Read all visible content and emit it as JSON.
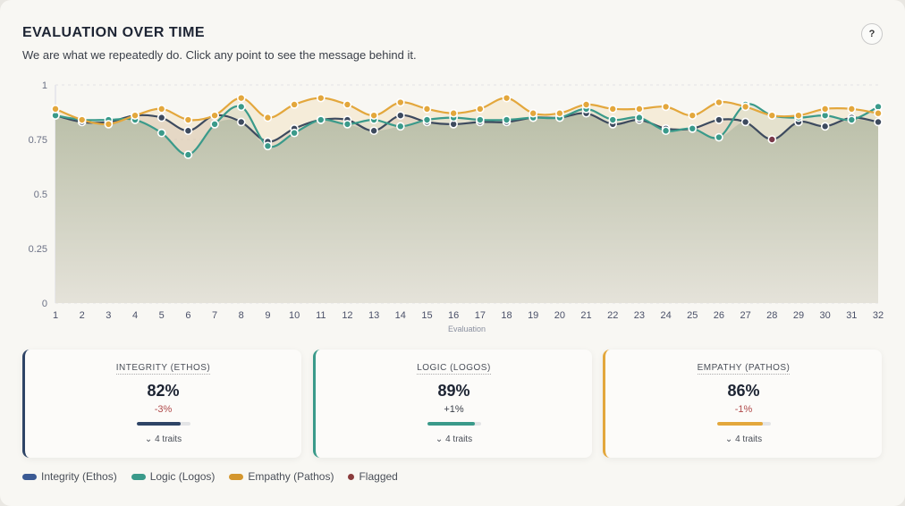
{
  "header": {
    "title": "EVALUATION OVER TIME",
    "subtitle": "We are what we repeatedly do. Click any point to see the message behind it.",
    "help_label": "?"
  },
  "chart_data": {
    "type": "line",
    "xlabel": "Evaluation",
    "ylabel": "",
    "x": [
      1,
      2,
      3,
      4,
      5,
      6,
      7,
      8,
      9,
      10,
      11,
      12,
      13,
      14,
      15,
      16,
      17,
      18,
      19,
      20,
      21,
      22,
      23,
      24,
      25,
      26,
      27,
      28,
      29,
      30,
      31,
      32
    ],
    "ylim": [
      0,
      1
    ],
    "yticks": [
      0,
      0.25,
      0.5,
      0.75,
      1
    ],
    "ytick_labels": [
      "0",
      "0.25",
      "0.5",
      "0.75",
      "1"
    ],
    "grid": true,
    "series": [
      {
        "name": "Integrity (Ethos)",
        "color": "#3d4a5e",
        "values": [
          0.86,
          0.83,
          0.83,
          0.86,
          0.85,
          0.79,
          0.86,
          0.83,
          0.74,
          0.8,
          0.84,
          0.84,
          0.79,
          0.86,
          0.83,
          0.82,
          0.83,
          0.83,
          0.85,
          0.85,
          0.87,
          0.82,
          0.84,
          0.8,
          0.8,
          0.84,
          0.83,
          0.75,
          0.83,
          0.81,
          0.85,
          0.83
        ]
      },
      {
        "name": "Logic (Logos)",
        "color": "#3a9a8a",
        "values": [
          0.86,
          0.84,
          0.84,
          0.84,
          0.78,
          0.68,
          0.82,
          0.9,
          0.72,
          0.78,
          0.84,
          0.82,
          0.84,
          0.81,
          0.84,
          0.85,
          0.84,
          0.84,
          0.85,
          0.85,
          0.89,
          0.84,
          0.85,
          0.79,
          0.8,
          0.76,
          0.91,
          0.86,
          0.85,
          0.86,
          0.84,
          0.9
        ]
      },
      {
        "name": "Empathy (Pathos)",
        "color": "#e3a73c",
        "values": [
          0.89,
          0.84,
          0.82,
          0.86,
          0.89,
          0.84,
          0.86,
          0.94,
          0.85,
          0.91,
          0.94,
          0.91,
          0.86,
          0.92,
          0.89,
          0.87,
          0.89,
          0.94,
          0.87,
          0.87,
          0.91,
          0.89,
          0.89,
          0.9,
          0.86,
          0.92,
          0.9,
          0.86,
          0.86,
          0.89,
          0.89,
          0.87
        ]
      }
    ],
    "flagged": [
      {
        "x": 28,
        "series": "Integrity (Ethos)",
        "value": 0.75
      }
    ],
    "flag_color": "#7a3a4a"
  },
  "cards": [
    {
      "label": "INTEGRITY (ETHOS)",
      "value": "82%",
      "delta": "-3%",
      "fill": 0.82,
      "traits": "4 traits",
      "color": "#2e4466",
      "delta_color": "#b04a4a"
    },
    {
      "label": "LOGIC (LOGOS)",
      "value": "89%",
      "delta": "+1%",
      "fill": 0.89,
      "traits": "4 traits",
      "color": "#3a9a8a",
      "delta_color": "#3a3f48"
    },
    {
      "label": "EMPATHY (PATHOS)",
      "value": "86%",
      "delta": "-1%",
      "fill": 0.86,
      "traits": "4 traits",
      "color": "#e3a73c",
      "delta_color": "#b04a4a"
    }
  ],
  "legend": [
    {
      "label": "Integrity (Ethos)",
      "color": "#3b5a94"
    },
    {
      "label": "Logic (Logos)",
      "color": "#3a9a8a"
    },
    {
      "label": "Empathy (Pathos)",
      "color": "#d4962e"
    },
    {
      "label": "Flagged",
      "color": "#8a3c3c"
    }
  ]
}
